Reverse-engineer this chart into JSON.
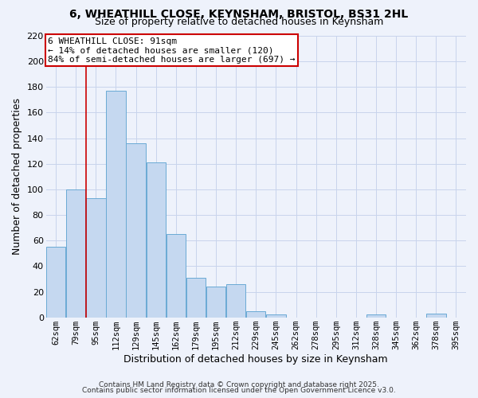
{
  "title1": "6, WHEATHILL CLOSE, KEYNSHAM, BRISTOL, BS31 2HL",
  "title2": "Size of property relative to detached houses in Keynsham",
  "xlabel": "Distribution of detached houses by size in Keynsham",
  "ylabel": "Number of detached properties",
  "footer1": "Contains HM Land Registry data © Crown copyright and database right 2025.",
  "footer2": "Contains public sector information licensed under the Open Government Licence v3.0.",
  "bin_labels": [
    "62sqm",
    "79sqm",
    "95sqm",
    "112sqm",
    "129sqm",
    "145sqm",
    "162sqm",
    "179sqm",
    "195sqm",
    "212sqm",
    "229sqm",
    "245sqm",
    "262sqm",
    "278sqm",
    "295sqm",
    "312sqm",
    "328sqm",
    "345sqm",
    "362sqm",
    "378sqm",
    "395sqm"
  ],
  "bar_values": [
    55,
    100,
    93,
    177,
    136,
    121,
    65,
    31,
    24,
    26,
    5,
    2,
    0,
    0,
    0,
    0,
    2,
    0,
    0,
    3,
    0
  ],
  "bar_color": "#c5d8f0",
  "bar_edge_color": "#6aaad4",
  "background_color": "#eef2fb",
  "grid_color": "#c8d4ec",
  "vline_color": "#cc0000",
  "vline_x": 1.5,
  "annotation_title": "6 WHEATHILL CLOSE: 91sqm",
  "annotation_line1": "← 14% of detached houses are smaller (120)",
  "annotation_line2": "84% of semi-detached houses are larger (697) →",
  "annotation_box_color": "#cc0000",
  "ylim": [
    0,
    220
  ],
  "yticks": [
    0,
    20,
    40,
    60,
    80,
    100,
    120,
    140,
    160,
    180,
    200,
    220
  ]
}
